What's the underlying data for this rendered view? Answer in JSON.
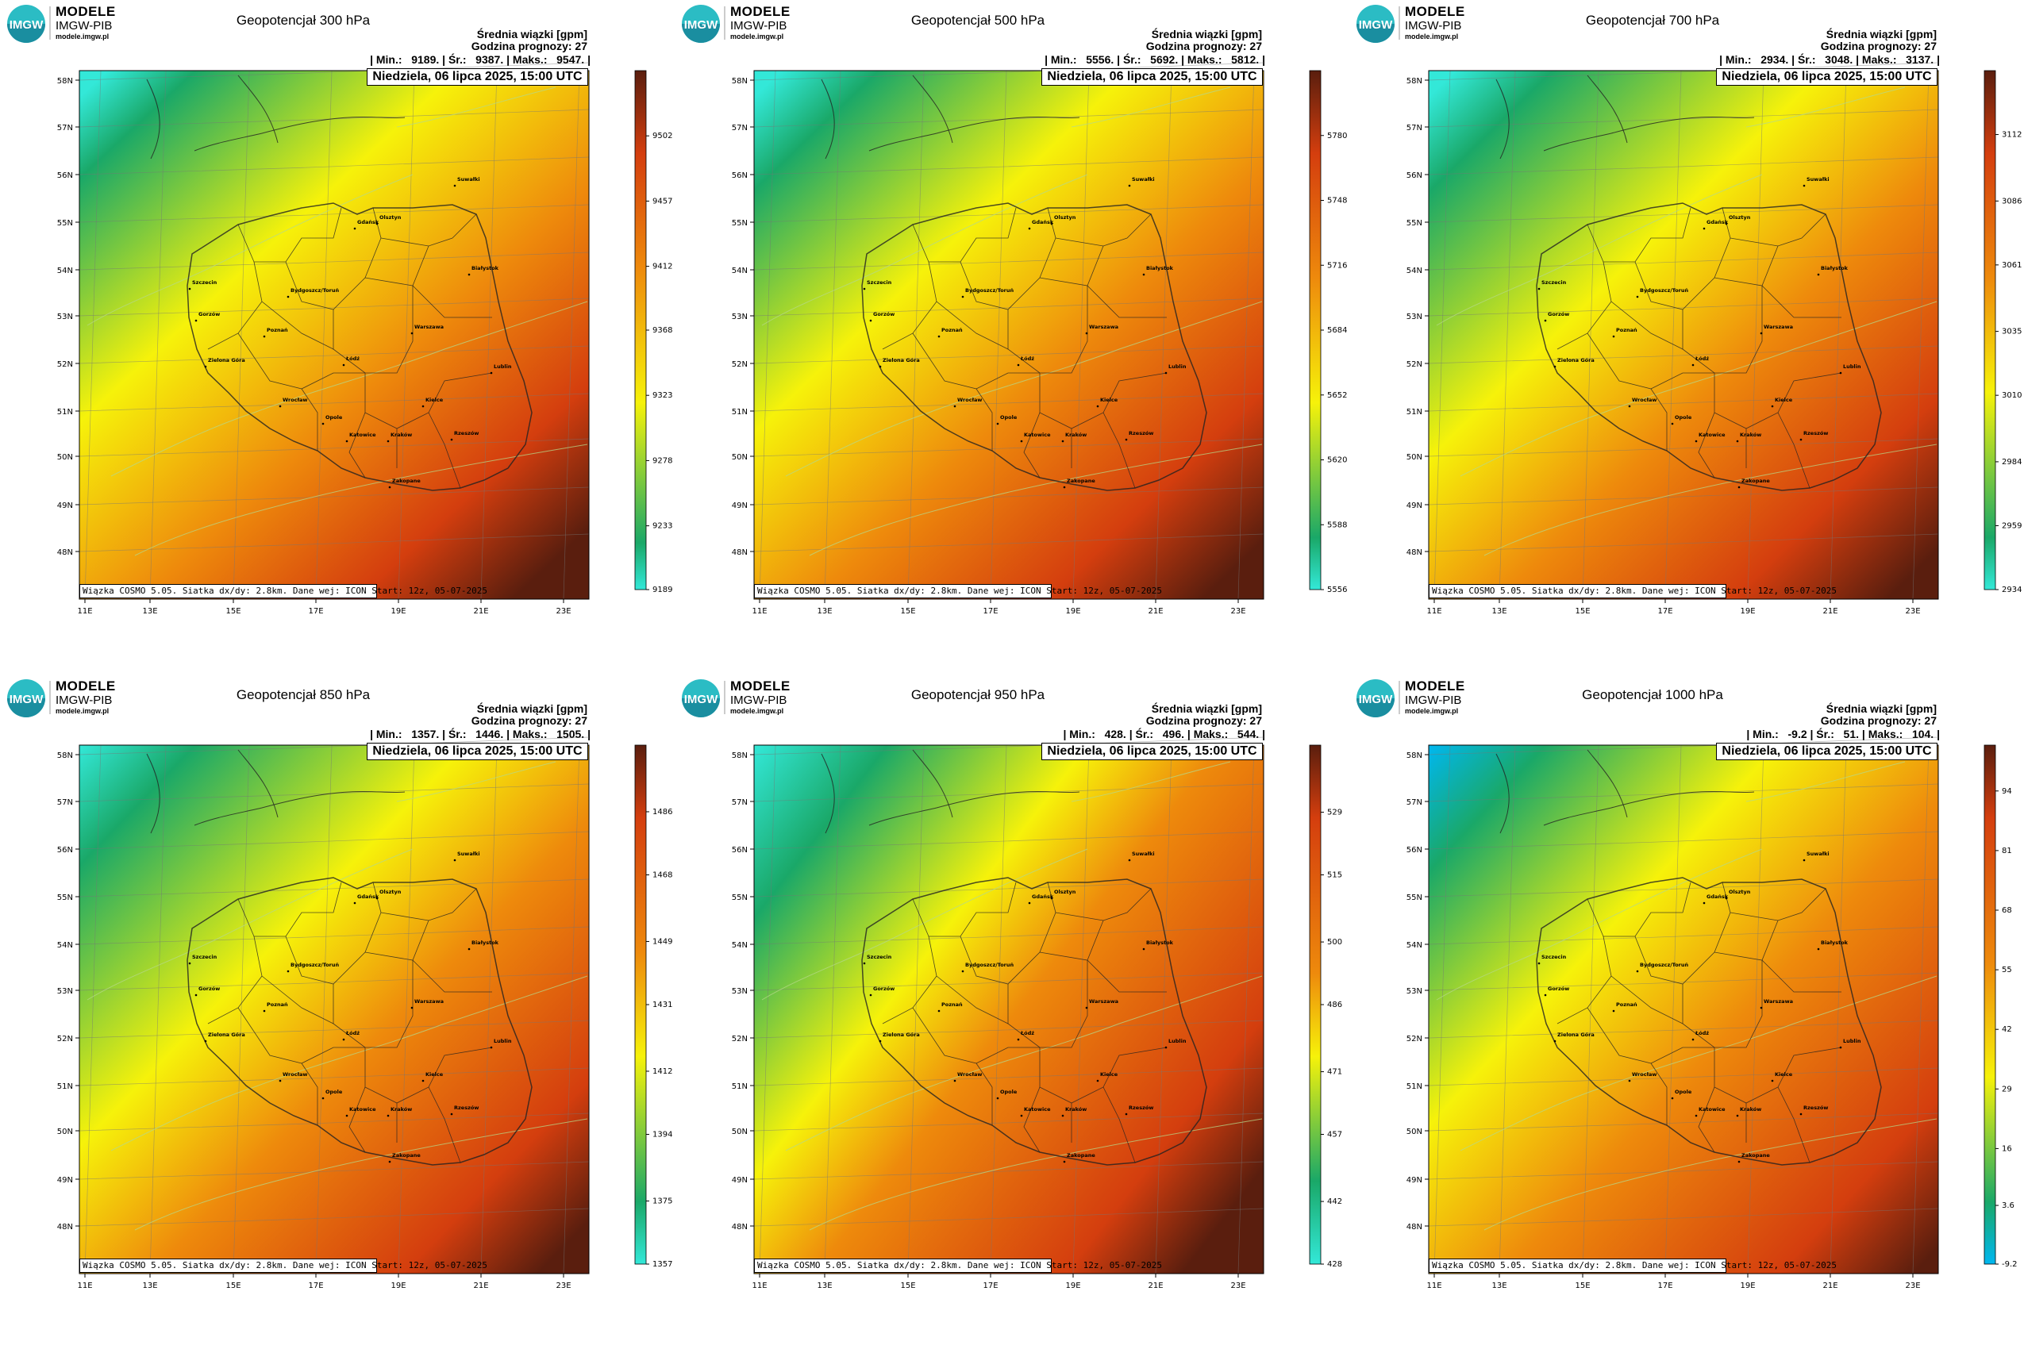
{
  "logo": {
    "mark": "IMGW",
    "line1": "MODELE",
    "line2": "IMGW-PIB",
    "line3": "modele.imgw.pl"
  },
  "common": {
    "info_line1": "Średnia wiązki [gpm]",
    "info_line2": "Godzina prognozy: 27",
    "date": "Niedziela, 06 lipca 2025, 15:00 UTC",
    "footer": "Wiązka COSMO 5.05. Siatka dx/dy: 2.8km. Dane wej: ICON Start: 12z, 05-07-2025",
    "lon_labels": [
      "11E",
      "13E",
      "15E",
      "17E",
      "19E",
      "21E",
      "23E"
    ],
    "lat_labels": [
      "58N",
      "57N",
      "56N",
      "55N",
      "54N",
      "53N",
      "52N",
      "51N",
      "50N",
      "49N",
      "48N"
    ],
    "cities": [
      "Gdańsk",
      "Suwałki",
      "Olsztyn",
      "Białystok",
      "Szczecin",
      "Bydgoszcz/Toruń",
      "Gorzów",
      "Poznań",
      "Warszawa",
      "Zielona Góra",
      "Łódź",
      "Lublin",
      "Wrocław",
      "Kielce",
      "Opole",
      "Katowice",
      "Kraków",
      "Rzeszów",
      "Zakopane"
    ],
    "colors": {
      "cyan": "#33e8d8",
      "green": "#1aa868",
      "yellow": "#f6f20a",
      "orange": "#ee8a0c",
      "red": "#d43e0e",
      "brown": "#5a1e0e",
      "blue": "#00b7f0"
    }
  },
  "panels": [
    {
      "title": "Geopotencjał 300 hPa",
      "stats": "| Min.:   9189. | Śr.:   9387. | Maks.:   9547. |"
    },
    {
      "title": "Geopotencjał 500 hPa",
      "stats": "| Min.:   5556. | Śr.:   5692. | Maks.:   5812. |"
    },
    {
      "title": "Geopotencjał 700 hPa",
      "stats": "| Min.:   2934. | Śr.:   3048. | Maks.:   3137. |"
    },
    {
      "title": "Geopotencjał 850 hPa",
      "stats": "| Min.:   1357. | Śr.:   1446. | Maks.:   1505. |"
    },
    {
      "title": "Geopotencjał 950 hPa",
      "stats": "| Min.:   428. | Śr.:   496. | Maks.:   544. |"
    },
    {
      "title": "Geopotencjał 1000 hPa",
      "stats": "| Min.:   -9.2 | Śr.:   51. | Maks.:   104. |"
    }
  ],
  "chart_data": [
    {
      "type": "heatmap",
      "title": "Geopotencjał 300 hPa",
      "unit": "gpm",
      "min": 9189,
      "mean": 9387,
      "max": 9547,
      "colorbar_ticks": [
        "9189",
        "9233",
        "9278",
        "9323",
        "9368",
        "9412",
        "9457",
        "9502"
      ],
      "colorbar_range": [
        9189,
        9547
      ]
    },
    {
      "type": "heatmap",
      "title": "Geopotencjał 500 hPa",
      "unit": "gpm",
      "min": 5556,
      "mean": 5692,
      "max": 5812,
      "colorbar_ticks": [
        "5556",
        "5588",
        "5620",
        "5652",
        "5684",
        "5716",
        "5748",
        "5780"
      ],
      "colorbar_range": [
        5556,
        5812
      ]
    },
    {
      "type": "heatmap",
      "title": "Geopotencjał 700 hPa",
      "unit": "gpm",
      "min": 2934,
      "mean": 3048,
      "max": 3137,
      "colorbar_ticks": [
        "2934",
        "2959",
        "2984",
        "3010",
        "3035",
        "3061",
        "3086",
        "3112"
      ],
      "colorbar_range": [
        2934,
        3137
      ]
    },
    {
      "type": "heatmap",
      "title": "Geopotencjał 850 hPa",
      "unit": "gpm",
      "min": 1357,
      "mean": 1446,
      "max": 1505,
      "colorbar_ticks": [
        "1357",
        "1375",
        "1394",
        "1412",
        "1431",
        "1449",
        "1468",
        "1486"
      ],
      "colorbar_range": [
        1357,
        1505
      ]
    },
    {
      "type": "heatmap",
      "title": "Geopotencjał 950 hPa",
      "unit": "gpm",
      "min": 428,
      "mean": 496,
      "max": 544,
      "colorbar_ticks": [
        "428",
        "442",
        "457",
        "471",
        "486",
        "500",
        "515",
        "529"
      ],
      "colorbar_range": [
        428,
        544
      ]
    },
    {
      "type": "heatmap",
      "title": "Geopotencjał 1000 hPa",
      "unit": "gpm",
      "min": -9.2,
      "mean": 51,
      "max": 104,
      "colorbar_ticks": [
        "-9.2",
        "3.6",
        "16",
        "29",
        "42",
        "55",
        "68",
        "81",
        "94"
      ],
      "colorbar_range": [
        -9.2,
        104
      ]
    }
  ]
}
